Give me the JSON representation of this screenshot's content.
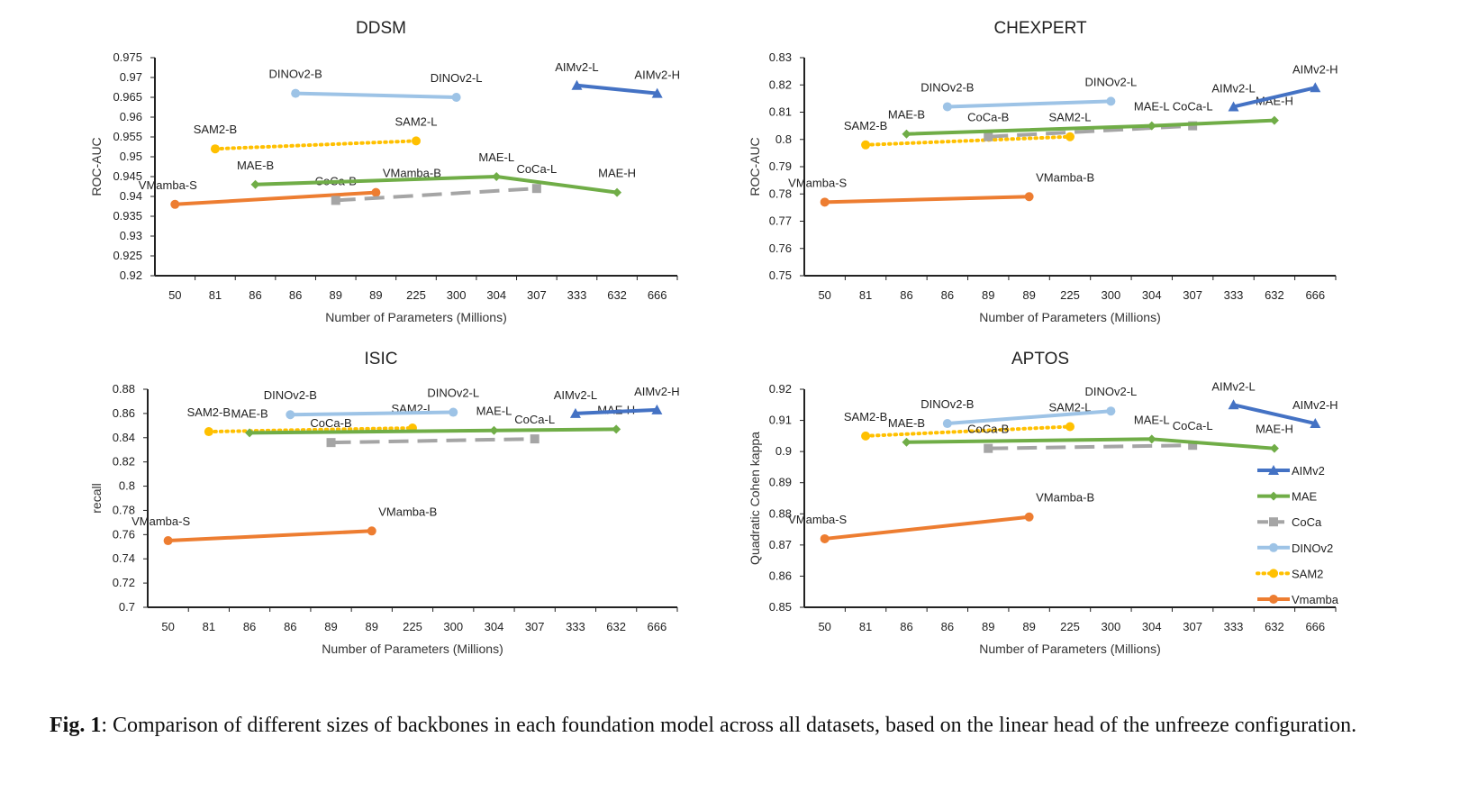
{
  "chart_data": [
    {
      "type": "line",
      "title": "DDSM",
      "xlabel": "Number of Parameters (Millions)",
      "ylabel": "ROC-AUC",
      "categories": [
        "50",
        "81",
        "86",
        "86",
        "89",
        "89",
        "225",
        "300",
        "304",
        "307",
        "333",
        "632",
        "666"
      ],
      "ylim": [
        0.92,
        0.975
      ],
      "yticks": [
        "0.92",
        "0.925",
        "0.93",
        "0.935",
        "0.94",
        "0.945",
        "0.95",
        "0.955",
        "0.96",
        "0.965",
        "0.97",
        "0.975"
      ],
      "series": [
        {
          "name": "AIMv2",
          "points": [
            [
              10,
              0.968,
              "AIMv2-L"
            ],
            [
              12,
              0.966,
              "AIMv2-H"
            ]
          ]
        },
        {
          "name": "MAE",
          "points": [
            [
              2,
              0.943,
              "MAE-B"
            ],
            [
              8,
              0.945,
              "MAE-L"
            ],
            [
              11,
              0.941,
              "MAE-H"
            ]
          ]
        },
        {
          "name": "CoCa",
          "points": [
            [
              4,
              0.939,
              "CoCa-B"
            ],
            [
              9,
              0.942,
              "CoCa-L"
            ]
          ]
        },
        {
          "name": "DINOv2",
          "points": [
            [
              3,
              0.966,
              "DINOv2-B"
            ],
            [
              7,
              0.965,
              "DINOv2-L"
            ]
          ]
        },
        {
          "name": "SAM2",
          "points": [
            [
              1,
              0.952,
              "SAM2-B"
            ],
            [
              6,
              0.954,
              "SAM2-L"
            ]
          ]
        },
        {
          "name": "Vmamba",
          "points": [
            [
              0,
              0.938,
              "VMamba-S"
            ],
            [
              5,
              0.941,
              "VMamba-B"
            ]
          ]
        }
      ]
    },
    {
      "type": "line",
      "title": "CHEXPERT",
      "xlabel": "Number of Parameters (Millions)",
      "ylabel": "ROC-AUC",
      "categories": [
        "50",
        "81",
        "86",
        "86",
        "89",
        "89",
        "225",
        "300",
        "304",
        "307",
        "333",
        "632",
        "666"
      ],
      "ylim": [
        0.75,
        0.83
      ],
      "yticks": [
        "0.75",
        "0.76",
        "0.77",
        "0.78",
        "0.79",
        "0.8",
        "0.81",
        "0.82",
        "0.83"
      ],
      "series": [
        {
          "name": "AIMv2",
          "points": [
            [
              10,
              0.812,
              "AIMv2-L"
            ],
            [
              12,
              0.819,
              "AIMv2-H"
            ]
          ]
        },
        {
          "name": "MAE",
          "points": [
            [
              2,
              0.802,
              "MAE-B"
            ],
            [
              8,
              0.805,
              "MAE-L"
            ],
            [
              11,
              0.807,
              "MAE-H"
            ]
          ]
        },
        {
          "name": "CoCa",
          "points": [
            [
              4,
              0.801,
              "CoCa-B"
            ],
            [
              9,
              0.805,
              "CoCa-L"
            ]
          ]
        },
        {
          "name": "DINOv2",
          "points": [
            [
              3,
              0.812,
              "DINOv2-B"
            ],
            [
              7,
              0.814,
              "DINOv2-L"
            ]
          ]
        },
        {
          "name": "SAM2",
          "points": [
            [
              1,
              0.798,
              "SAM2-B"
            ],
            [
              6,
              0.801,
              "SAM2-L"
            ]
          ]
        },
        {
          "name": "Vmamba",
          "points": [
            [
              0,
              0.777,
              "VMamba-S"
            ],
            [
              5,
              0.779,
              "VMamba-B"
            ]
          ]
        }
      ]
    },
    {
      "type": "line",
      "title": "ISIC",
      "xlabel": "Number of Parameters (Millions)",
      "ylabel": "recall",
      "categories": [
        "50",
        "81",
        "86",
        "86",
        "89",
        "89",
        "225",
        "300",
        "304",
        "307",
        "333",
        "632",
        "666"
      ],
      "ylim": [
        0.7,
        0.88
      ],
      "yticks": [
        "0.7",
        "0.72",
        "0.74",
        "0.76",
        "0.78",
        "0.8",
        "0.82",
        "0.84",
        "0.86",
        "0.88"
      ],
      "series": [
        {
          "name": "AIMv2",
          "points": [
            [
              10,
              0.86,
              "AIMv2-L"
            ],
            [
              12,
              0.863,
              "AIMv2-H"
            ]
          ]
        },
        {
          "name": "MAE",
          "points": [
            [
              2,
              0.844,
              "MAE-B"
            ],
            [
              8,
              0.846,
              "MAE-L"
            ],
            [
              11,
              0.847,
              "MAE-H"
            ]
          ]
        },
        {
          "name": "CoCa",
          "points": [
            [
              4,
              0.836,
              "CoCa-B"
            ],
            [
              9,
              0.839,
              "CoCa-L"
            ]
          ]
        },
        {
          "name": "DINOv2",
          "points": [
            [
              3,
              0.859,
              "DINOv2-B"
            ],
            [
              7,
              0.861,
              "DINOv2-L"
            ]
          ]
        },
        {
          "name": "SAM2",
          "points": [
            [
              1,
              0.845,
              "SAM2-B"
            ],
            [
              6,
              0.848,
              "SAM2-L"
            ]
          ]
        },
        {
          "name": "Vmamba",
          "points": [
            [
              0,
              0.755,
              "VMamba-S"
            ],
            [
              5,
              0.763,
              "VMamba-B"
            ]
          ]
        }
      ]
    },
    {
      "type": "line",
      "title": "APTOS",
      "xlabel": "Number of Parameters (Millions)",
      "ylabel": "Quadratic Cohen kappa",
      "categories": [
        "50",
        "81",
        "86",
        "86",
        "89",
        "89",
        "225",
        "300",
        "304",
        "307",
        "333",
        "632",
        "666"
      ],
      "ylim": [
        0.85,
        0.92
      ],
      "yticks": [
        "0.85",
        "0.86",
        "0.87",
        "0.88",
        "0.89",
        "0.9",
        "0.91",
        "0.92"
      ],
      "legend": "right",
      "series": [
        {
          "name": "AIMv2",
          "points": [
            [
              10,
              0.915,
              "AIMv2-L"
            ],
            [
              12,
              0.909,
              "AIMv2-H"
            ]
          ]
        },
        {
          "name": "MAE",
          "points": [
            [
              2,
              0.903,
              "MAE-B"
            ],
            [
              8,
              0.904,
              "MAE-L"
            ],
            [
              11,
              0.901,
              "MAE-H"
            ]
          ]
        },
        {
          "name": "CoCa",
          "points": [
            [
              4,
              0.901,
              "CoCa-B"
            ],
            [
              9,
              0.902,
              "CoCa-L"
            ]
          ]
        },
        {
          "name": "DINOv2",
          "points": [
            [
              3,
              0.909,
              "DINOv2-B"
            ],
            [
              7,
              0.913,
              "DINOv2-L"
            ]
          ]
        },
        {
          "name": "SAM2",
          "points": [
            [
              1,
              0.905,
              "SAM2-B"
            ],
            [
              6,
              0.908,
              "SAM2-L"
            ]
          ]
        },
        {
          "name": "Vmamba",
          "points": [
            [
              0,
              0.872,
              "VMamba-S"
            ],
            [
              5,
              0.879,
              "VMamba-B"
            ]
          ]
        }
      ]
    }
  ],
  "series_style": {
    "AIMv2": {
      "color": "#4472C4",
      "marker": "triangle",
      "dash": "solid"
    },
    "MAE": {
      "color": "#70AD47",
      "marker": "diamond",
      "dash": "solid"
    },
    "CoCa": {
      "color": "#A5A5A5",
      "marker": "square",
      "dash": "long-dash"
    },
    "DINOv2": {
      "color": "#9DC3E6",
      "marker": "circle",
      "dash": "solid"
    },
    "SAM2": {
      "color": "#FFC000",
      "marker": "circle",
      "dash": "dotted"
    },
    "Vmamba": {
      "color": "#ED7D31",
      "marker": "circle",
      "dash": "solid"
    }
  },
  "legend_labels": [
    "AIMv2",
    "MAE",
    "CoCa",
    "DINOv2",
    "SAM2",
    "Vmamba"
  ],
  "caption": {
    "label": "Fig. 1",
    "text": ": Comparison of different sizes of backbones in each foundation model across all datasets, based on the linear head of the unfreeze configuration."
  }
}
